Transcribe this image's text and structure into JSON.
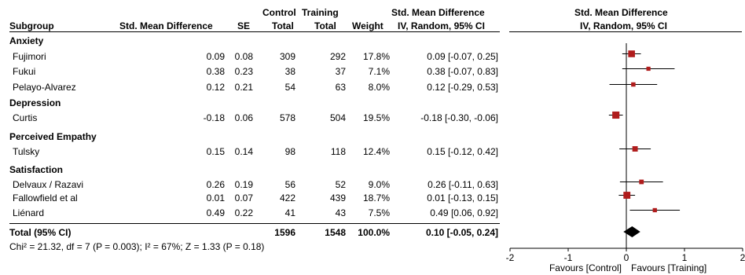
{
  "header": {
    "subgroup": "Subgroup",
    "smd": "Std. Mean Difference",
    "se": "SE",
    "control_top": "Control",
    "control_bottom": "Total",
    "training_top": "Training",
    "training_bottom": "Total",
    "weight": "Weight",
    "ci_top": "Std. Mean Difference",
    "ci_bottom": "IV, Random, 95% CI",
    "plot_top": "Std. Mean Difference",
    "plot_bottom": "IV, Random, 95% CI"
  },
  "groups": [
    {
      "name": "Anxiety",
      "rows": [
        {
          "study": "Fujimori",
          "smd": "0.09",
          "se": "0.08",
          "control": "309",
          "training": "292",
          "weight": "17.8%",
          "ci": "0.09 [-0.07, 0.25]"
        },
        {
          "study": "Fukui",
          "smd": "0.38",
          "se": "0.23",
          "control": "38",
          "training": "37",
          "weight": "7.1%",
          "ci": "0.38 [-0.07, 0.83]"
        },
        {
          "study": "Pelayo-Alvarez",
          "smd": "0.12",
          "se": "0.21",
          "control": "54",
          "training": "63",
          "weight": "8.0%",
          "ci": "0.12 [-0.29, 0.53]"
        }
      ]
    },
    {
      "name": "Depression",
      "rows": [
        {
          "study": "Curtis",
          "smd": "-0.18",
          "se": "0.06",
          "control": "578",
          "training": "504",
          "weight": "19.5%",
          "ci": "-0.18 [-0.30, -0.06]"
        }
      ]
    },
    {
      "name": "Perceived Empathy",
      "rows": [
        {
          "study": "Tulsky",
          "smd": "0.15",
          "se": "0.14",
          "control": "98",
          "training": "118",
          "weight": "12.4%",
          "ci": "0.15 [-0.12, 0.42]"
        }
      ]
    },
    {
      "name": "Satisfaction",
      "rows": [
        {
          "study": "Delvaux / Razavi",
          "smd": "0.26",
          "se": "0.19",
          "control": "56",
          "training": "52",
          "weight": "9.0%",
          "ci": "0.26 [-0.11, 0.63]"
        },
        {
          "study": "Fallowfield et al",
          "smd": "0.01",
          "se": "0.07",
          "control": "422",
          "training": "439",
          "weight": "18.7%",
          "ci": "0.01 [-0.13, 0.15]"
        },
        {
          "study": "Liénard",
          "smd": "0.49",
          "se": "0.22",
          "control": "41",
          "training": "43",
          "weight": "7.5%",
          "ci": "0.49 [0.06, 0.92]"
        }
      ]
    }
  ],
  "total": {
    "label": "Total (95% CI)",
    "control": "1596",
    "training": "1548",
    "weight": "100.0%",
    "ci": "0.10 [-0.05, 0.24]"
  },
  "heterogeneity": "Chi² = 21.32, df = 7 (P = 0.003); I² = 67%; Z = 1.33 (P = 0.18)",
  "chart_data": {
    "type": "forest",
    "x_ticks": [
      "-2",
      "-1",
      "0",
      "1",
      "2"
    ],
    "xlim": [
      -2,
      2
    ],
    "favours_left": "Favours [Control]",
    "favours_right": "Favours [Training]",
    "colors": {
      "marker": "#b01c1c",
      "line": "#000000",
      "diamond": "#000000"
    },
    "studies": [
      {
        "name": "Fujimori",
        "est": 0.09,
        "lo": -0.07,
        "hi": 0.25,
        "weight": 17.8
      },
      {
        "name": "Fukui",
        "est": 0.38,
        "lo": -0.07,
        "hi": 0.83,
        "weight": 7.1
      },
      {
        "name": "Pelayo-Alvarez",
        "est": 0.12,
        "lo": -0.29,
        "hi": 0.53,
        "weight": 8.0
      },
      {
        "name": "Curtis",
        "est": -0.18,
        "lo": -0.3,
        "hi": -0.06,
        "weight": 19.5
      },
      {
        "name": "Tulsky",
        "est": 0.15,
        "lo": -0.12,
        "hi": 0.42,
        "weight": 12.4
      },
      {
        "name": "Delvaux / Razavi",
        "est": 0.26,
        "lo": -0.11,
        "hi": 0.63,
        "weight": 9.0
      },
      {
        "name": "Fallowfield et al",
        "est": 0.01,
        "lo": -0.13,
        "hi": 0.15,
        "weight": 18.7
      },
      {
        "name": "Liénard",
        "est": 0.49,
        "lo": 0.06,
        "hi": 0.92,
        "weight": 7.5
      }
    ],
    "pooled": {
      "est": 0.1,
      "lo": -0.05,
      "hi": 0.24
    }
  }
}
